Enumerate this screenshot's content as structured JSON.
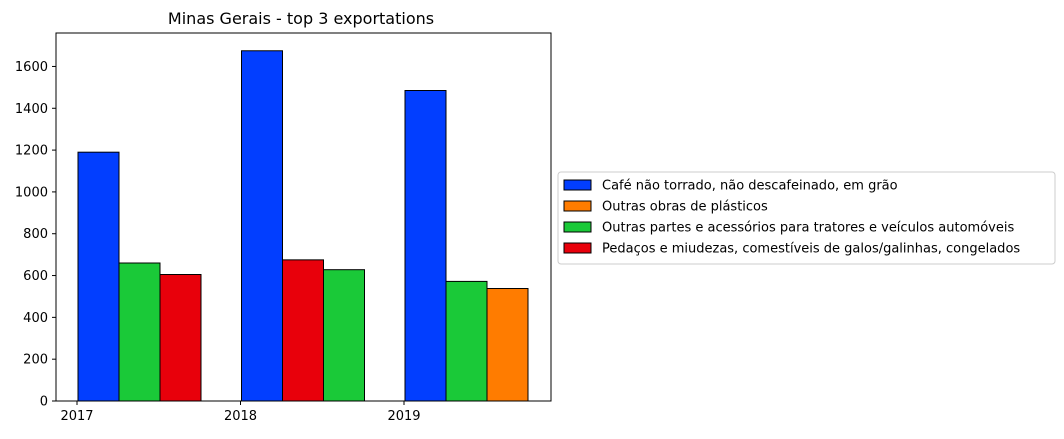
{
  "chart_data": {
    "type": "bar",
    "title": "Minas Gerais - top 3 exportations",
    "xlabel": "",
    "ylabel": "",
    "ylim": [
      0,
      1760
    ],
    "yticks": [
      0,
      200,
      400,
      600,
      800,
      1000,
      1200,
      1400,
      1600
    ],
    "grid": false,
    "legend_position": "right, outside plot",
    "groups": [
      {
        "category": "2017",
        "bars": [
          {
            "series": "Café não torrado, não descafeinado, em grão",
            "value": 1190
          },
          {
            "series": "Outras partes e acessórios para tratores e veículos automóveis",
            "value": 660
          },
          {
            "series": "Pedaços e miudezas, comestíveis de galos/galinhas, congelados",
            "value": 605
          }
        ]
      },
      {
        "category": "2018",
        "bars": [
          {
            "series": "Café não torrado, não descafeinado, em grão",
            "value": 1675
          },
          {
            "series": "Pedaços e miudezas, comestíveis de galos/galinhas, congelados",
            "value": 675
          },
          {
            "series": "Outras partes e acessórios para tratores e veículos automóveis",
            "value": 628
          }
        ]
      },
      {
        "category": "2019",
        "bars": [
          {
            "series": "Café não torrado, não descafeinado, em grão",
            "value": 1485
          },
          {
            "series": "Outras partes e acessórios para tratores e veículos automóveis",
            "value": 572
          },
          {
            "series": "Outras obras de plásticos",
            "value": 538
          }
        ]
      }
    ],
    "series": [
      {
        "name": "Café não torrado, não descafeinado, em grão",
        "color": "#023eff"
      },
      {
        "name": "Outras obras de plásticos",
        "color": "#ff7c00"
      },
      {
        "name": "Outras partes e acessórios para tratores e veículos automóveis",
        "color": "#1ac938"
      },
      {
        "name": "Pedaços e miudezas, comestíveis de galos/galinhas, congelados",
        "color": "#e8000b"
      }
    ]
  }
}
